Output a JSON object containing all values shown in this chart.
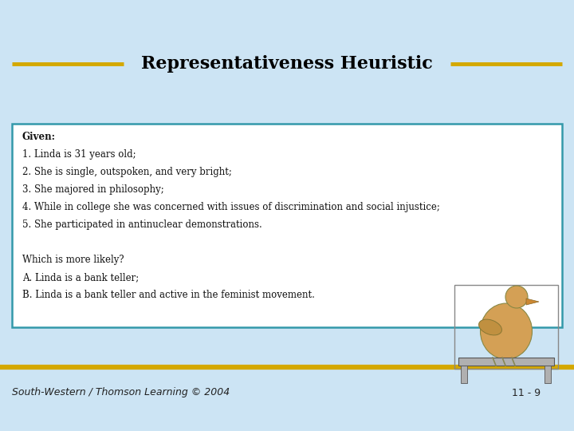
{
  "title": "Representativeness Heuristic",
  "background_color": "#cce4f4",
  "title_color": "#000000",
  "title_fontsize": 16,
  "gold_color": "#D4A800",
  "box_bg": "#ffffff",
  "box_border": "#3399aa",
  "content_lines": [
    "Given:",
    "1. Linda is 31 years old;",
    "2. She is single, outspoken, and very bright;",
    "3. She majored in philosophy;",
    "4. While in college she was concerned with issues of discrimination and social injustice;",
    "5. She participated in antinuclear demonstrations.",
    "",
    "Which is more likely?",
    "A. Linda is a bank teller;",
    "B. Linda is a bank teller and active in the feminist movement."
  ],
  "footer_left": "South-Western / Thomson Learning © 2004",
  "footer_right": "11 - 9",
  "footer_color": "#222222",
  "footer_fontsize": 9
}
